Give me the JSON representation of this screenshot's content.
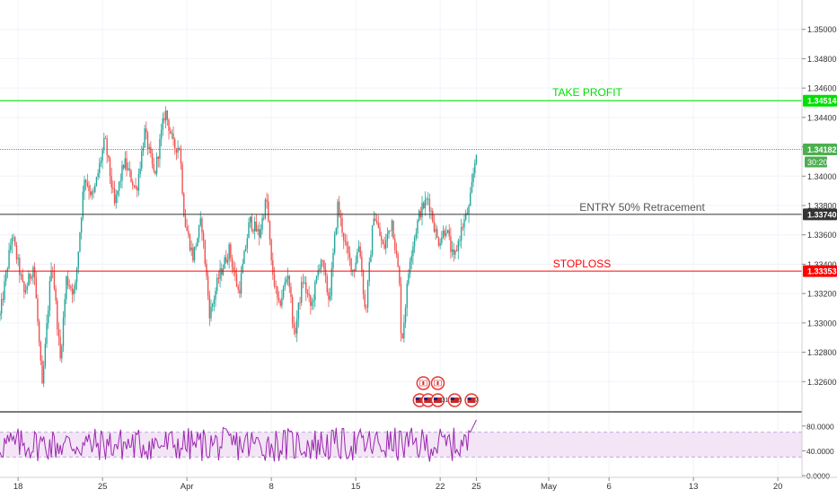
{
  "chart_data": [
    {
      "type": "candlestick",
      "ylim": [
        1.324,
        1.352
      ],
      "grid": true,
      "y_ticks": [
        "1.35000",
        "1.34800",
        "1.34600",
        "1.34400",
        "1.34200",
        "1.34000",
        "1.33800",
        "1.33600",
        "1.33400",
        "1.33200",
        "1.33000",
        "1.32800",
        "1.32600"
      ],
      "y_tick_values": [
        1.35,
        1.348,
        1.346,
        1.344,
        1.342,
        1.34,
        1.338,
        1.336,
        1.334,
        1.332,
        1.33,
        1.328,
        1.326
      ],
      "x_ticks": [
        {
          "label": "18",
          "day": 0
        },
        {
          "label": "25",
          "day": 7
        },
        {
          "label": "Apr",
          "day": 14
        },
        {
          "label": "8",
          "day": 21
        },
        {
          "label": "15",
          "day": 28
        },
        {
          "label": "22",
          "day": 35
        },
        {
          "label": "25",
          "day": 38
        },
        {
          "label": "May",
          "day": 44
        },
        {
          "label": "6",
          "day": 49
        },
        {
          "label": "13",
          "day": 56
        },
        {
          "label": "20",
          "day": 63
        }
      ],
      "x_range_days": [
        -1.5,
        65
      ],
      "last_data_day": 38.0,
      "price_path": [
        [
          -1.5,
          1.3305
        ],
        [
          -0.5,
          1.336
        ],
        [
          0.5,
          1.332
        ],
        [
          1.3,
          1.334
        ],
        [
          2.0,
          1.3255
        ],
        [
          2.8,
          1.3345
        ],
        [
          3.5,
          1.3275
        ],
        [
          4.0,
          1.333
        ],
        [
          4.7,
          1.332
        ],
        [
          5.5,
          1.34
        ],
        [
          6.2,
          1.3385
        ],
        [
          7.2,
          1.3425
        ],
        [
          8.0,
          1.338
        ],
        [
          8.8,
          1.341
        ],
        [
          9.8,
          1.339
        ],
        [
          10.5,
          1.343
        ],
        [
          11.3,
          1.34
        ],
        [
          12.2,
          1.3445
        ],
        [
          12.9,
          1.342
        ],
        [
          13.4,
          1.342
        ],
        [
          13.8,
          1.337
        ],
        [
          14.5,
          1.3345
        ],
        [
          15.2,
          1.337
        ],
        [
          15.9,
          1.3305
        ],
        [
          16.6,
          1.333
        ],
        [
          17.5,
          1.335
        ],
        [
          18.3,
          1.332
        ],
        [
          19.2,
          1.337
        ],
        [
          20.0,
          1.336
        ],
        [
          20.6,
          1.3385
        ],
        [
          21.0,
          1.334
        ],
        [
          21.6,
          1.331
        ],
        [
          22.4,
          1.3335
        ],
        [
          22.9,
          1.329
        ],
        [
          23.6,
          1.333
        ],
        [
          24.3,
          1.331
        ],
        [
          25.1,
          1.3345
        ],
        [
          25.8,
          1.3315
        ],
        [
          26.5,
          1.338
        ],
        [
          27.2,
          1.335
        ],
        [
          27.8,
          1.3335
        ],
        [
          28.3,
          1.3355
        ],
        [
          28.8,
          1.3305
        ],
        [
          29.5,
          1.3375
        ],
        [
          30.3,
          1.335
        ],
        [
          31.0,
          1.337
        ],
        [
          31.6,
          1.333
        ],
        [
          31.8,
          1.3285
        ],
        [
          32.5,
          1.3345
        ],
        [
          33.3,
          1.3375
        ],
        [
          34.0,
          1.3385
        ],
        [
          34.8,
          1.3355
        ],
        [
          35.5,
          1.3365
        ],
        [
          36.1,
          1.3342
        ],
        [
          36.8,
          1.3365
        ],
        [
          37.4,
          1.3378
        ],
        [
          37.8,
          1.3405
        ],
        [
          38.0,
          1.3418
        ]
      ],
      "indicator": {
        "type": "rsi",
        "ylim": [
          0,
          100
        ],
        "y_ticks": [
          "80.0000",
          "40.0000",
          "0.0000"
        ],
        "y_tick_values": [
          80,
          40,
          0
        ],
        "band": [
          30,
          70
        ],
        "last_value": 90
      },
      "colors": {
        "up": "#26a69a",
        "down": "#ef5350",
        "rsi": "#9c27b0",
        "rsi_band": "#f3e5f5",
        "take_profit": "#00e000",
        "entry": "#333333",
        "stoploss": "#ff0000",
        "current": "#4caf50"
      }
    }
  ],
  "levels": {
    "take_profit": {
      "value": 1.34514,
      "label": "TAKE PROFIT",
      "price_tag": "1.34514"
    },
    "current": {
      "value": 1.34182,
      "price_tag": "1.34182",
      "countdown": "30:20"
    },
    "entry": {
      "value": 1.3374,
      "label": "ENTRY    50% Retracement",
      "price_tag": "1.33740"
    },
    "stoploss": {
      "value": 1.33353,
      "label": "STOPLOSS",
      "price_tag": "1.33353"
    }
  },
  "events": [
    {
      "day": 33.6,
      "icon": "canada-flag-icon"
    },
    {
      "day": 34.8,
      "icon": "canada-flag-icon"
    },
    {
      "day": 33.3,
      "icon": "us-flag-icon",
      "count": "5"
    },
    {
      "day": 34.0,
      "icon": "us-flag-icon",
      "count": "5"
    },
    {
      "day": 34.8,
      "icon": "us-flag-icon",
      "count": "31"
    },
    {
      "day": 36.2,
      "icon": "us-flag-icon",
      "count": "6"
    },
    {
      "day": 37.6,
      "icon": "us-flag-icon",
      "count": "7"
    }
  ]
}
